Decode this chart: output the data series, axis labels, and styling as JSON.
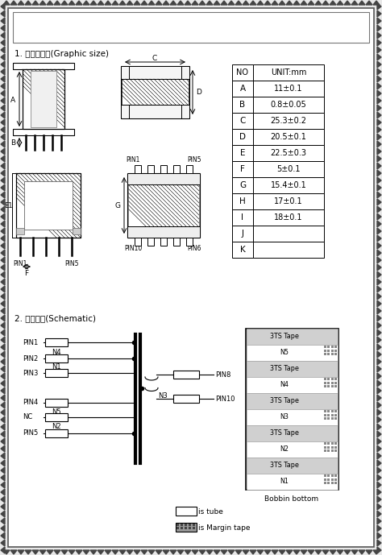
{
  "bg_color": "#e8e8e8",
  "page_bg": "#ffffff",
  "section1_label": "1. 图形尺寸：(Graphic size)",
  "section2_label": "2. 原理图：(Schematic)",
  "table_headers": [
    "NO",
    "UNIT:mm"
  ],
  "table_rows": [
    [
      "A",
      "11±0.1"
    ],
    [
      "B",
      "0.8±0.05"
    ],
    [
      "C",
      "25.3±0.2"
    ],
    [
      "D",
      "20.5±0.1"
    ],
    [
      "E",
      "22.5±0.3"
    ],
    [
      "F",
      "5±0.1"
    ],
    [
      "G",
      "15.4±0.1"
    ],
    [
      "H",
      "17±0.1"
    ],
    [
      "I",
      "18±0.1"
    ],
    [
      "J",
      ""
    ],
    [
      "K",
      ""
    ]
  ],
  "bobbin_layers": [
    "3TS Tape",
    "N5",
    "3TS Tape",
    "N4",
    "3TS Tape",
    "N3",
    "3TS Tape",
    "N2",
    "3TS Tape",
    "N1"
  ],
  "bobbin_label": "Bobbin bottom",
  "legend_tube": "is tube",
  "legend_margin": "is Margin tape"
}
